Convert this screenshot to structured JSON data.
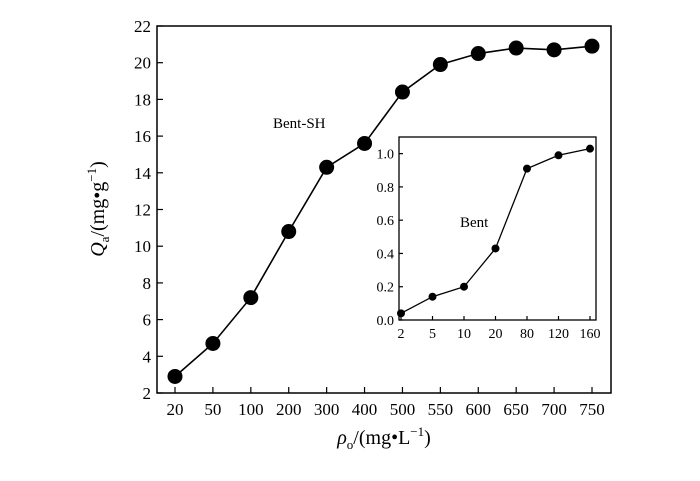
{
  "chart_data": [
    {
      "type": "line",
      "x": [
        "20",
        "50",
        "100",
        "200",
        "300",
        "400",
        "500",
        "550",
        "600",
        "650",
        "700",
        "750"
      ],
      "series": [
        {
          "name": "Bent-SH",
          "values": [
            2.9,
            4.7,
            7.2,
            10.8,
            14.3,
            15.6,
            18.4,
            19.9,
            20.5,
            20.8,
            20.7,
            20.9
          ]
        }
      ],
      "ylim": [
        2,
        22
      ],
      "yticks": [
        "2",
        "4",
        "6",
        "8",
        "10",
        "12",
        "14",
        "16",
        "18",
        "20",
        "22"
      ],
      "xlabel": {
        "main": "ρ",
        "sub": "o",
        "unit_prefix": "/(mg•L",
        "sup": "−1",
        "unit_suffix": ")"
      },
      "ylabel": {
        "main": "Q",
        "sub": "a",
        "unit_prefix": "/(mg•g",
        "sup": "−1",
        "unit_suffix": ")"
      },
      "grid": false,
      "marker": "filled-circle"
    },
    {
      "type": "line",
      "inset": true,
      "x": [
        "2",
        "5",
        "10",
        "20",
        "80",
        "120",
        "160"
      ],
      "series": [
        {
          "name": "Bent",
          "values": [
            0.04,
            0.14,
            0.2,
            0.43,
            0.91,
            0.99,
            1.03
          ]
        }
      ],
      "ylim": [
        0,
        1.1
      ],
      "yticks": [
        "0.0",
        "0.2",
        "0.4",
        "0.6",
        "0.8",
        "1.0"
      ],
      "grid": false,
      "marker": "filled-circle"
    }
  ]
}
